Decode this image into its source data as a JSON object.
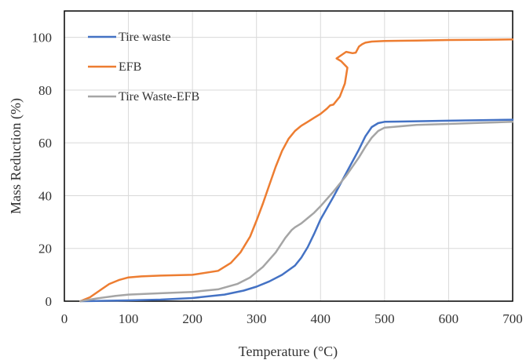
{
  "chart_data": {
    "type": "line",
    "xlabel": "Temperature (°C)",
    "ylabel": "Mass Reduction (%)",
    "xlim": [
      0,
      700
    ],
    "ylim": [
      0,
      110
    ],
    "x_ticks": [
      "0",
      "100",
      "200",
      "300",
      "400",
      "500",
      "600",
      "700"
    ],
    "y_ticks": [
      "0",
      "20",
      "40",
      "60",
      "80",
      "100"
    ],
    "grid": true,
    "legend_position": "top-left",
    "series": [
      {
        "name": "Tire waste",
        "color": "#4472C4",
        "x": [
          25,
          50,
          100,
          150,
          200,
          250,
          280,
          300,
          320,
          340,
          360,
          370,
          380,
          390,
          400,
          420,
          440,
          460,
          470,
          480,
          490,
          500,
          550,
          600,
          650,
          700
        ],
        "y": [
          0,
          0.1,
          0.3,
          0.6,
          1.2,
          2.5,
          4.0,
          5.5,
          7.5,
          10.0,
          13.5,
          16.5,
          20.5,
          25.5,
          31.0,
          39.5,
          48.5,
          57.5,
          62.5,
          66.0,
          67.5,
          68.0,
          68.2,
          68.4,
          68.6,
          68.8
        ]
      },
      {
        "name": "EFB",
        "color": "#ED7D31",
        "x": [
          25,
          40,
          55,
          70,
          85,
          100,
          120,
          150,
          200,
          240,
          260,
          275,
          290,
          300,
          310,
          320,
          330,
          340,
          350,
          360,
          370,
          380,
          390,
          400,
          410,
          415,
          420,
          430,
          438,
          442,
          432,
          425,
          440,
          450,
          455,
          460,
          465,
          470,
          480,
          500,
          550,
          600,
          650,
          700
        ],
        "y": [
          0,
          1.5,
          4.0,
          6.5,
          8.0,
          9.0,
          9.4,
          9.7,
          10.0,
          11.5,
          14.5,
          18.5,
          24.5,
          30.5,
          37.0,
          44.0,
          51.0,
          57.0,
          61.5,
          64.5,
          66.5,
          68.0,
          69.5,
          71.0,
          73.0,
          74.2,
          74.5,
          77.5,
          82.5,
          88.5,
          91.0,
          92.0,
          94.5,
          94.0,
          94.2,
          96.5,
          97.4,
          98.0,
          98.4,
          98.6,
          98.8,
          99.0,
          99.1,
          99.2
        ]
      },
      {
        "name": "Tire Waste-EFB",
        "color": "#A5A5A5",
        "x": [
          25,
          50,
          80,
          100,
          150,
          200,
          240,
          270,
          290,
          310,
          330,
          345,
          355,
          360,
          370,
          380,
          390,
          400,
          420,
          440,
          460,
          470,
          480,
          490,
          500,
          550,
          600,
          650,
          700
        ],
        "y": [
          0,
          1.0,
          2.0,
          2.5,
          3.0,
          3.5,
          4.5,
          6.5,
          9.0,
          13.0,
          18.5,
          24.0,
          27.0,
          28.0,
          29.5,
          31.5,
          33.5,
          36.0,
          41.5,
          47.5,
          54.5,
          58.5,
          62.0,
          64.5,
          65.8,
          66.8,
          67.2,
          67.6,
          68.0
        ]
      }
    ]
  }
}
